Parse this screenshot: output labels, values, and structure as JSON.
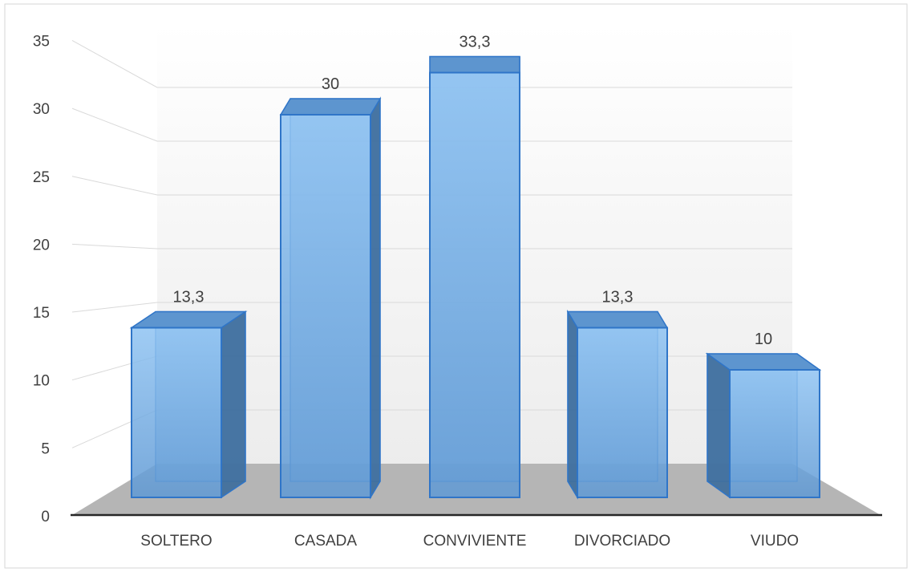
{
  "chart_data": {
    "type": "bar",
    "style": "3d-column",
    "categories": [
      "SOLTERO",
      "CASADA",
      "CONVIVIENTE",
      "DIVORCIADO",
      "VIUDO"
    ],
    "values": [
      13.3,
      30,
      33.3,
      13.3,
      10
    ],
    "data_labels": [
      "13,3",
      "30",
      "33,3",
      "13,3",
      "10"
    ],
    "y_ticks": [
      "0",
      "5",
      "10",
      "15",
      "20",
      "25",
      "30",
      "35"
    ],
    "ylim": [
      0,
      35
    ],
    "grid": true,
    "legend": "none",
    "title": "",
    "xlabel": "",
    "ylabel": "",
    "colors": {
      "bar_front": "#6fa8e0",
      "bar_side": "#3e6e9c",
      "bar_edge": "#2f75c8",
      "floor": "#b5b5b5",
      "axis": "#262626"
    }
  }
}
